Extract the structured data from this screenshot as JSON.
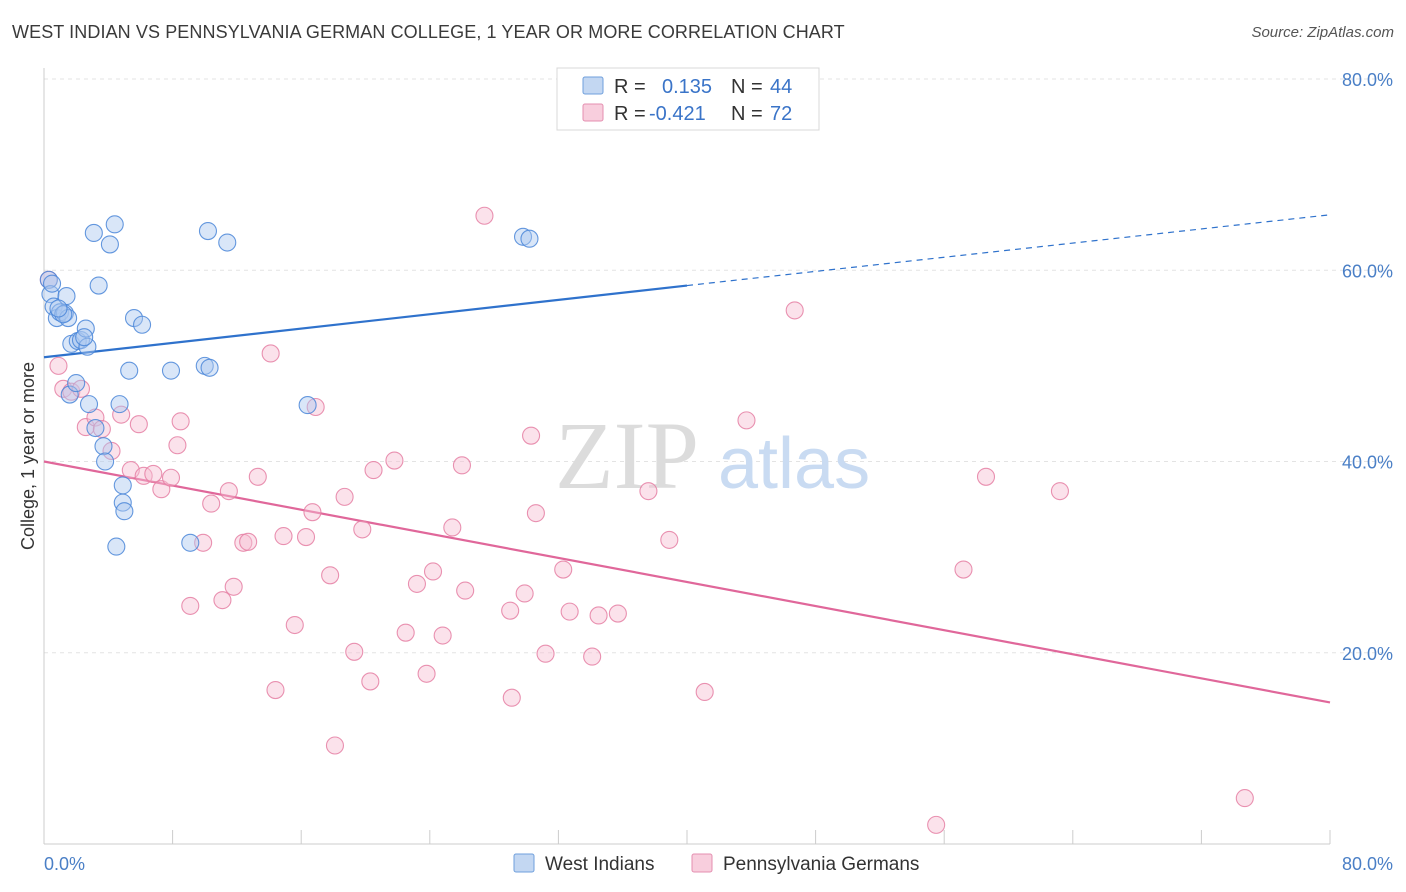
{
  "title": "WEST INDIAN VS PENNSYLVANIA GERMAN COLLEGE, 1 YEAR OR MORE CORRELATION CHART",
  "source": "Source: ZipAtlas.com",
  "watermark": {
    "zip": "ZIP",
    "atlas": "atlas"
  },
  "colors": {
    "blue": "#4a86d8",
    "blue_fill": "#aac8ef",
    "blue_line": "#2f72cc",
    "pink": "#e57fa3",
    "pink_fill": "#f6bfd2",
    "pink_line": "#e0679a",
    "tick_text": "#4a7fc6",
    "grid": "#e3e3e3"
  },
  "legend": {
    "r_label": "R =",
    "n_label": "N =",
    "rows": [
      {
        "r": "0.135",
        "n": "44"
      },
      {
        "r": "-0.421",
        "n": "72"
      }
    ]
  },
  "chart_data": {
    "type": "scatter",
    "ylabel": "College, 1 year or more",
    "xlim": [
      0,
      80
    ],
    "ylim": [
      0,
      80
    ],
    "x_ticks": [
      "0.0%",
      "80.0%"
    ],
    "y_ticks": [
      "20.0%",
      "40.0%",
      "60.0%",
      "80.0%"
    ],
    "y_tick_values": [
      20,
      40,
      60,
      80
    ],
    "grid": true,
    "legend_position": "top-center",
    "series": [
      {
        "name": "West Indians",
        "color": "#4a86d8",
        "trend": {
          "x0": 0,
          "y0": 50.9,
          "x1": 40,
          "y1": 58.4,
          "dash_x1": 80,
          "dash_y1": 65.8
        },
        "points": [
          [
            0.3,
            59.0
          ],
          [
            0.4,
            57.5
          ],
          [
            0.6,
            56.2
          ],
          [
            0.8,
            55.0
          ],
          [
            1.0,
            55.6
          ],
          [
            1.3,
            55.5
          ],
          [
            1.4,
            57.3
          ],
          [
            1.5,
            55.0
          ],
          [
            1.7,
            52.3
          ],
          [
            1.6,
            47.0
          ],
          [
            2.0,
            48.2
          ],
          [
            2.1,
            52.6
          ],
          [
            2.3,
            52.7
          ],
          [
            2.6,
            53.9
          ],
          [
            2.7,
            52.0
          ],
          [
            2.8,
            46.0
          ],
          [
            3.2,
            43.5
          ],
          [
            3.1,
            63.9
          ],
          [
            3.4,
            58.4
          ],
          [
            3.7,
            41.6
          ],
          [
            3.8,
            40.0
          ],
          [
            4.1,
            62.7
          ],
          [
            4.4,
            64.8
          ],
          [
            4.5,
            31.1
          ],
          [
            4.7,
            46.0
          ],
          [
            4.9,
            37.5
          ],
          [
            4.9,
            35.7
          ],
          [
            5.0,
            34.8
          ],
          [
            5.3,
            49.5
          ],
          [
            5.6,
            55.0
          ],
          [
            6.1,
            54.3
          ],
          [
            7.9,
            49.5
          ],
          [
            9.1,
            31.5
          ],
          [
            10.0,
            50.0
          ],
          [
            10.2,
            64.1
          ],
          [
            10.3,
            49.8
          ],
          [
            11.4,
            62.9
          ],
          [
            16.4,
            45.9
          ],
          [
            29.8,
            63.5
          ],
          [
            30.2,
            63.3
          ],
          [
            0.5,
            58.6
          ],
          [
            1.2,
            55.4
          ],
          [
            2.5,
            53.0
          ],
          [
            0.9,
            56.0
          ]
        ]
      },
      {
        "name": "Pennsylvania Germans",
        "color": "#e57fa3",
        "trend": {
          "x0": 0,
          "y0": 40.0,
          "x1": 80,
          "y1": 14.8
        },
        "points": [
          [
            0.3,
            59.0
          ],
          [
            0.9,
            50.0
          ],
          [
            1.2,
            47.6
          ],
          [
            1.7,
            47.3
          ],
          [
            2.3,
            47.6
          ],
          [
            2.6,
            43.6
          ],
          [
            3.2,
            44.6
          ],
          [
            3.6,
            43.4
          ],
          [
            4.2,
            41.1
          ],
          [
            4.8,
            44.9
          ],
          [
            5.4,
            39.1
          ],
          [
            5.9,
            43.9
          ],
          [
            6.2,
            38.5
          ],
          [
            6.8,
            38.7
          ],
          [
            7.3,
            37.1
          ],
          [
            7.9,
            38.3
          ],
          [
            8.3,
            41.7
          ],
          [
            8.5,
            44.2
          ],
          [
            9.1,
            24.9
          ],
          [
            9.9,
            31.5
          ],
          [
            10.4,
            35.6
          ],
          [
            11.1,
            25.5
          ],
          [
            11.5,
            36.9
          ],
          [
            11.8,
            26.9
          ],
          [
            12.4,
            31.5
          ],
          [
            12.7,
            31.6
          ],
          [
            13.3,
            38.4
          ],
          [
            14.1,
            51.3
          ],
          [
            14.4,
            16.1
          ],
          [
            14.9,
            32.2
          ],
          [
            15.6,
            22.9
          ],
          [
            16.3,
            32.1
          ],
          [
            16.9,
            45.7
          ],
          [
            16.7,
            34.7
          ],
          [
            17.8,
            28.1
          ],
          [
            18.1,
            10.3
          ],
          [
            18.7,
            36.3
          ],
          [
            19.3,
            20.1
          ],
          [
            19.8,
            32.9
          ],
          [
            20.3,
            17.0
          ],
          [
            20.5,
            39.1
          ],
          [
            21.8,
            40.1
          ],
          [
            22.5,
            22.1
          ],
          [
            23.2,
            27.2
          ],
          [
            23.8,
            17.8
          ],
          [
            24.2,
            28.5
          ],
          [
            24.8,
            21.8
          ],
          [
            25.4,
            33.1
          ],
          [
            26.0,
            39.6
          ],
          [
            26.2,
            26.5
          ],
          [
            27.4,
            65.7
          ],
          [
            29.0,
            24.4
          ],
          [
            29.1,
            15.3
          ],
          [
            29.9,
            26.2
          ],
          [
            30.3,
            42.7
          ],
          [
            30.6,
            34.6
          ],
          [
            31.2,
            19.9
          ],
          [
            32.3,
            28.7
          ],
          [
            32.7,
            24.3
          ],
          [
            34.1,
            19.6
          ],
          [
            34.5,
            23.9
          ],
          [
            35.7,
            24.1
          ],
          [
            37.6,
            36.9
          ],
          [
            38.9,
            31.8
          ],
          [
            41.1,
            15.9
          ],
          [
            43.7,
            44.3
          ],
          [
            46.7,
            55.8
          ],
          [
            55.5,
            2.0
          ],
          [
            57.2,
            28.7
          ],
          [
            58.6,
            38.4
          ],
          [
            63.2,
            36.9
          ],
          [
            74.7,
            4.8
          ]
        ]
      }
    ]
  }
}
